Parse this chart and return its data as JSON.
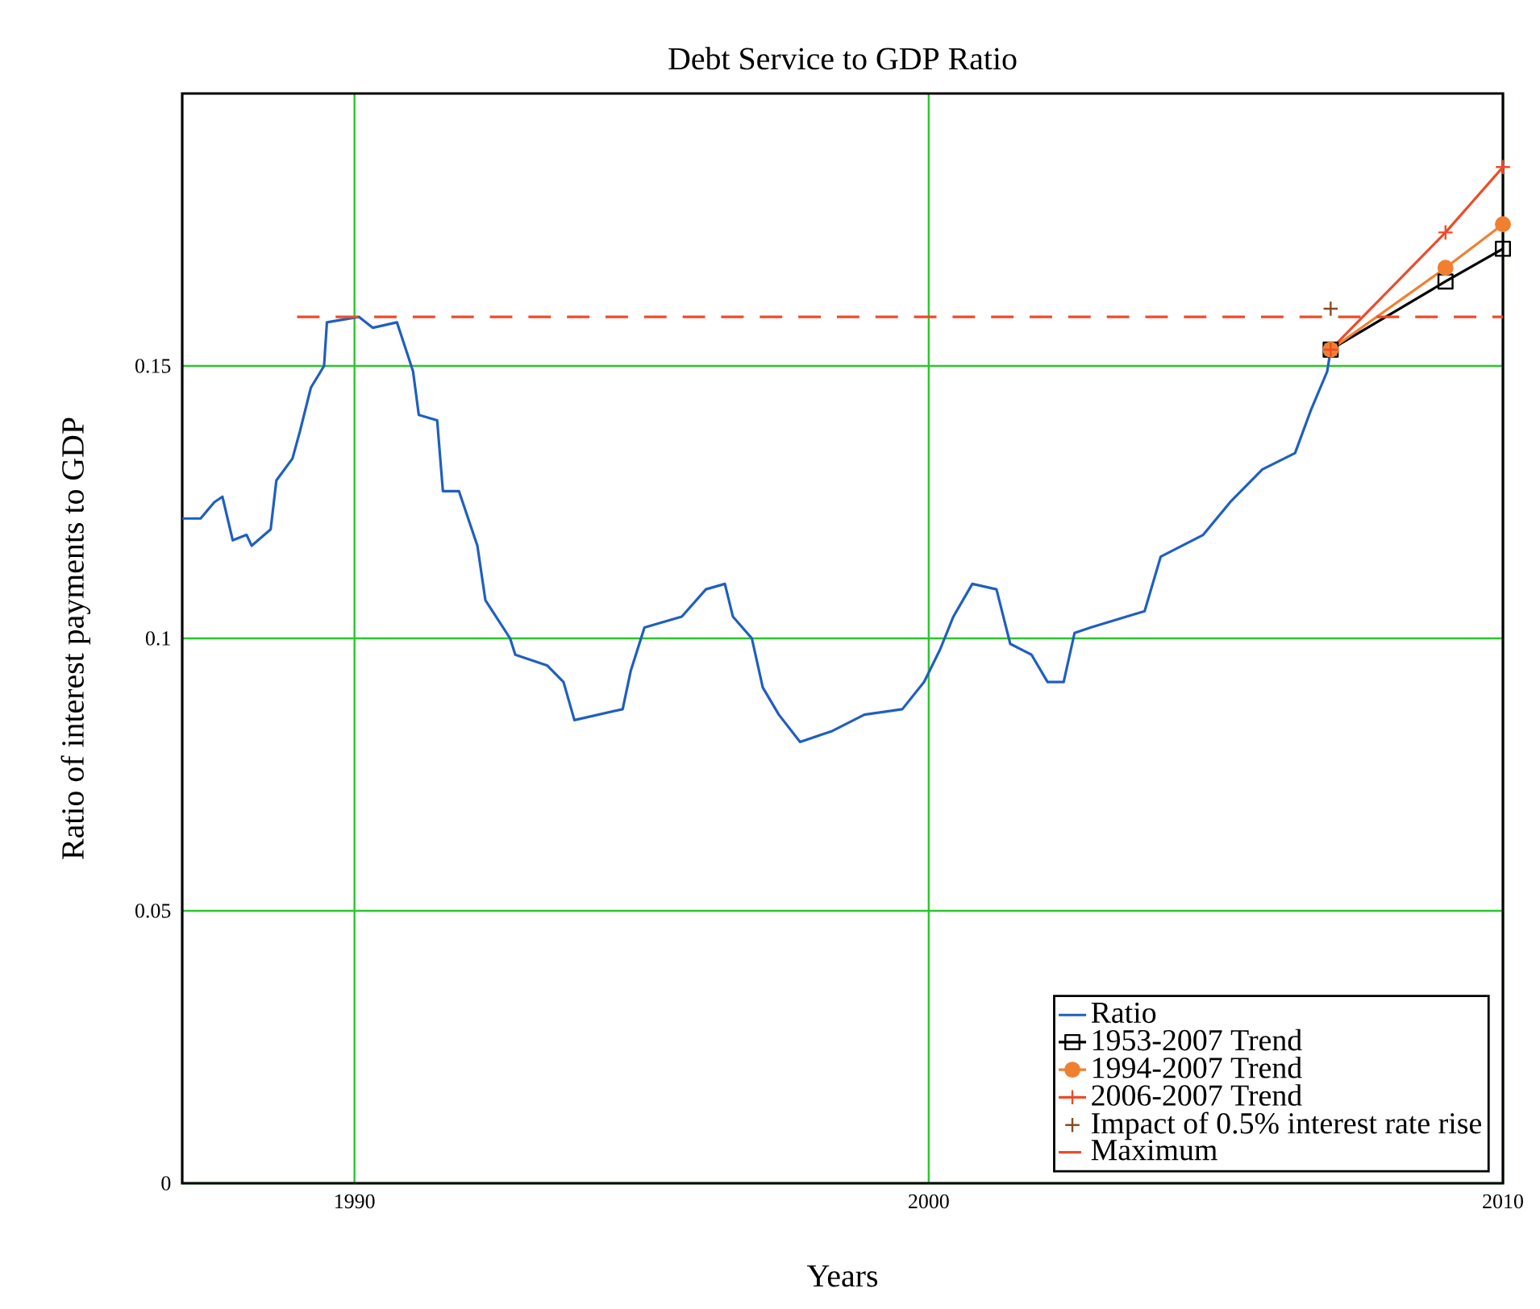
{
  "chart_data": {
    "type": "line",
    "title": "Debt Service to GDP Ratio",
    "xlabel": "Years",
    "ylabel": "Ratio of interest payments to GDP",
    "xlim": [
      1987,
      2010
    ],
    "xticks": [
      1990,
      2000,
      2010
    ],
    "ylim": [
      0,
      0.2
    ],
    "yticks": [
      0,
      0.05,
      0.1,
      0.15
    ],
    "grid": true,
    "legend": "bottom right",
    "series": [
      {
        "name": "Ratio",
        "color": "#1f5fbf",
        "marker": "none",
        "line_style": "solid",
        "x": [
          1987.0,
          1987.32,
          1987.56,
          1987.7,
          1987.88,
          1988.12,
          1988.21,
          1988.54,
          1988.64,
          1988.92,
          1989.05,
          1989.24,
          1989.47,
          1989.52,
          1990.08,
          1990.32,
          1990.74,
          1991.02,
          1991.12,
          1991.44,
          1991.54,
          1991.82,
          1992.14,
          1992.28,
          1992.71,
          1992.8,
          1993.36,
          1993.64,
          1993.83,
          1994.67,
          1994.81,
          1995.05,
          1995.7,
          1996.12,
          1996.45,
          1996.59,
          1996.92,
          1997.11,
          1997.39,
          1997.76,
          1998.32,
          1998.88,
          1999.54,
          1999.92,
          2000.2,
          2000.43,
          2000.76,
          2001.18,
          2001.42,
          2001.79,
          2002.07,
          2002.35,
          2002.54,
          2002.82,
          2003.76,
          2004.04,
          2004.78,
          2005.25,
          2005.81,
          2006.38,
          2006.66,
          2006.94,
          2007.0
        ],
        "values": [
          0.122,
          0.122,
          0.125,
          0.126,
          0.118,
          0.119,
          0.117,
          0.12,
          0.129,
          0.133,
          0.138,
          0.146,
          0.15,
          0.158,
          0.159,
          0.157,
          0.158,
          0.149,
          0.141,
          0.14,
          0.127,
          0.127,
          0.117,
          0.107,
          0.1,
          0.097,
          0.095,
          0.092,
          0.085,
          0.087,
          0.094,
          0.102,
          0.104,
          0.109,
          0.11,
          0.104,
          0.1,
          0.091,
          0.086,
          0.081,
          0.083,
          0.086,
          0.087,
          0.092,
          0.098,
          0.104,
          0.11,
          0.109,
          0.099,
          0.097,
          0.092,
          0.092,
          0.101,
          0.102,
          0.105,
          0.115,
          0.119,
          0.125,
          0.131,
          0.134,
          0.142,
          0.149,
          0.153
        ]
      },
      {
        "name": "1953-2007 Trend",
        "color": "#000000",
        "marker": "square",
        "line_style": "solid",
        "x": [
          2007,
          2009,
          2010
        ],
        "values": [
          0.153,
          0.1655,
          0.1715
        ]
      },
      {
        "name": "1994-2007 Trend",
        "color": "#f08030",
        "marker": "circle",
        "line_style": "solid",
        "x": [
          2007,
          2009,
          2010
        ],
        "values": [
          0.153,
          0.168,
          0.176
        ]
      },
      {
        "name": "2006-2007 Trend",
        "color": "#f04a28",
        "marker": "cross",
        "line_style": "solid",
        "x": [
          2007,
          2009,
          2010
        ],
        "values": [
          0.153,
          0.1745,
          0.1865
        ]
      },
      {
        "name": "Impact of 0.5% interest rate rise",
        "type": "scatter",
        "color": "#8b4a20",
        "marker": "cross",
        "x": [
          2007
        ],
        "values": [
          0.1605
        ]
      },
      {
        "name": "Maximum",
        "color": "#f04a28",
        "marker": "none",
        "line_style": "dashed",
        "x": [
          1989,
          2010
        ],
        "values": [
          0.159,
          0.159
        ]
      }
    ]
  }
}
